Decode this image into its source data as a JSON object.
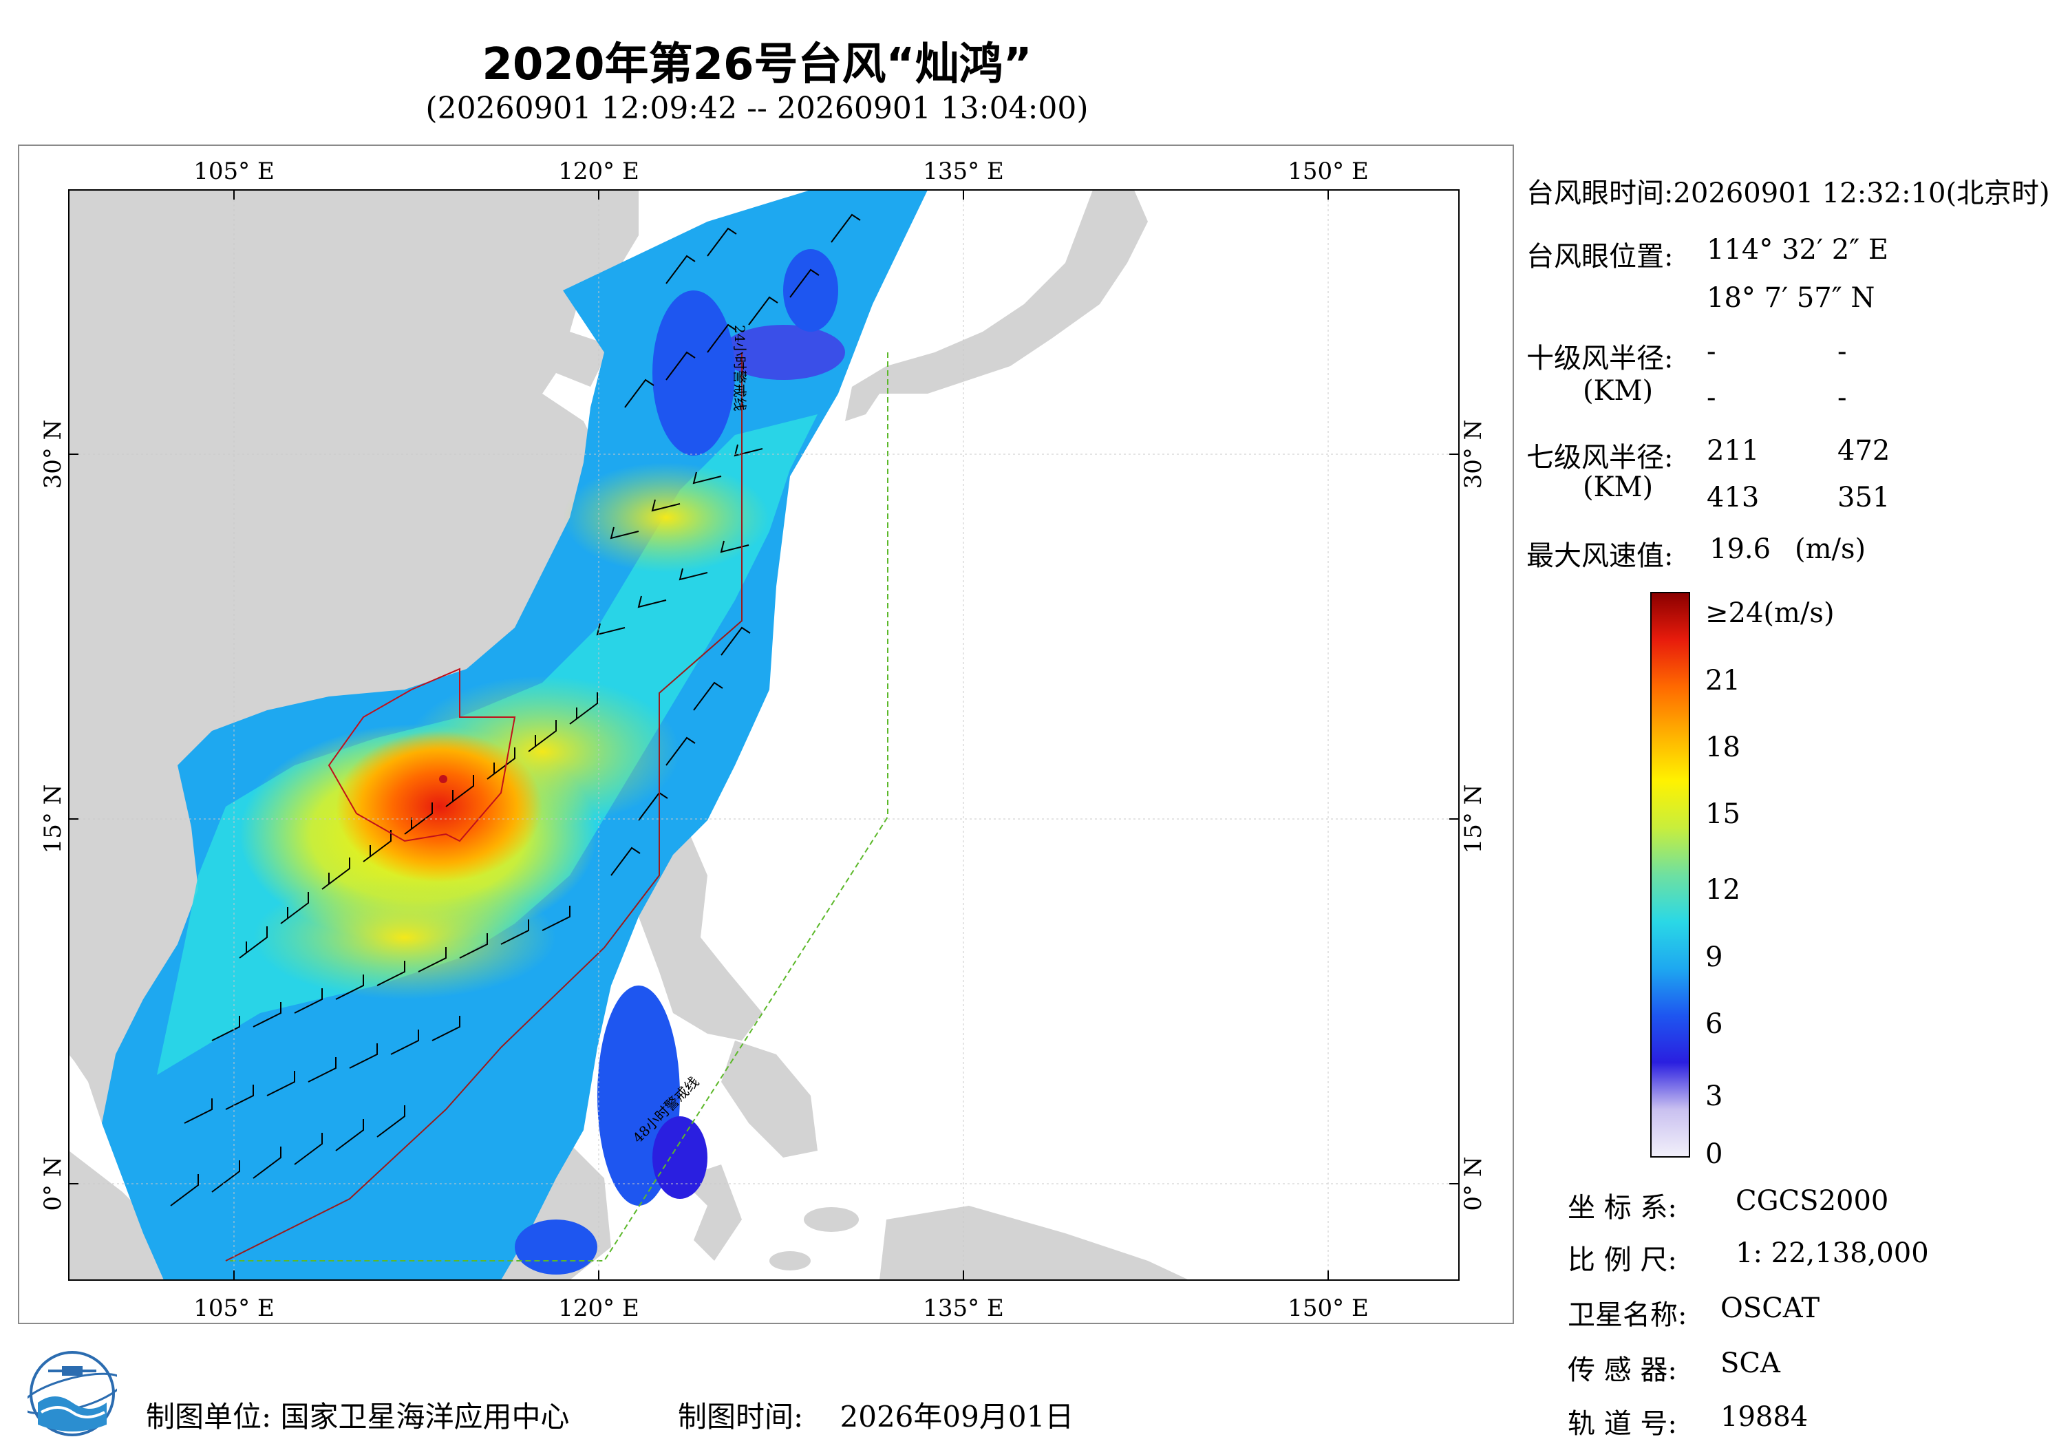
{
  "header": {
    "title": "2020年第26号台风“灿鸿”",
    "subtitle": "(20260901 12:09:42 -- 20260901 13:04:00)"
  },
  "map": {
    "lon_labels": [
      "105° E",
      "120° E",
      "135° E",
      "150° E"
    ],
    "lat_labels": [
      "30° N",
      "15° N",
      "0° N"
    ],
    "warning_line_48h": "48小时警戒线",
    "warning_line_24h": "24小时警戒线",
    "colors": {
      "land": "#d3d3d3",
      "ocean": "#ffffff",
      "warning_48h": "#5cb82a",
      "warning_24h": "#9b1b1b",
      "wind_circle": "#c0101a"
    }
  },
  "info": {
    "eye_time_label": "台风眼时间:",
    "eye_time_value": "20260901 12:32:10(北京时)",
    "eye_pos_label": "台风眼位置:",
    "eye_lon": "114° 32′ 2″ E",
    "eye_lat": "18° 7′ 57″ N",
    "r10_label": "十级风半径:",
    "km_label": "(KM)",
    "r10_values": [
      "-",
      "-",
      "-",
      "-"
    ],
    "r7_label": "七级风半径:",
    "r7_values": [
      "211",
      "472",
      "413",
      "351"
    ],
    "max_wind_label": "最大风速值:",
    "max_wind_value": "19.6",
    "max_wind_unit": "(m/s)"
  },
  "colorbar": {
    "ticks": [
      "≥24(m/s)",
      "21",
      "18",
      "15",
      "12",
      "9",
      "6",
      "3",
      "0"
    ],
    "stops": [
      "#f2f0fa",
      "#c9c0f0",
      "#2a1fe0",
      "#1e56f0",
      "#1ea8f0",
      "#2ad8e6",
      "#6fe0a0",
      "#c8ee3c",
      "#fff200",
      "#ffb000",
      "#ff6a00",
      "#e81c0c",
      "#8b0000"
    ]
  },
  "meta": {
    "crs_label": "坐 标 系:",
    "crs_value": "CGCS2000",
    "scale_label": "比 例 尺:",
    "scale_value": "1: 22,138,000",
    "satellite_label": "卫星名称:",
    "satellite_value": "OSCAT",
    "sensor_label": "传 感 器:",
    "sensor_value": "SCA",
    "orbit_label": "轨 道 号:",
    "orbit_value": "19884"
  },
  "footer": {
    "producer_label": "制图单位:",
    "producer_value": "国家卫星海洋应用中心",
    "date_label": "制图时间:",
    "date_value": "2026年09月01日"
  }
}
